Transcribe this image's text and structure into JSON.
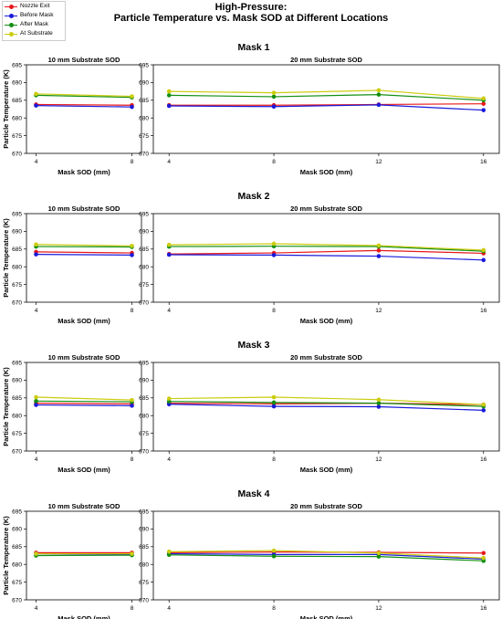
{
  "suptitle": {
    "line1": "High-Pressure:",
    "line2": "Particle Temperature vs. Mask SOD at Different Locations"
  },
  "legend": [
    {
      "name": "Nozzle Exit",
      "color": "#e8191b"
    },
    {
      "name": "Before Mask",
      "color": "#1a1adb"
    },
    {
      "name": "After Mask",
      "color": "#138f13"
    },
    {
      "name": "At Substrate",
      "color": "#cccc10"
    }
  ],
  "chart_data": [
    {
      "type": "line",
      "group": "Mask 1",
      "title": "10 mm Substrate SOD",
      "xlabel": "Mask SOD (mm)",
      "ylabel": "Particle Temperature (K)",
      "x": [
        4,
        8
      ],
      "xlim": [
        3.6,
        8.4
      ],
      "ylim": [
        670,
        695
      ],
      "xticks": [
        4,
        8
      ],
      "yticks": [
        670,
        675,
        680,
        685,
        690,
        695
      ],
      "grid": false,
      "series": [
        {
          "name": "Nozzle Exit",
          "values": [
            683.8,
            683.6
          ]
        },
        {
          "name": "Before Mask",
          "values": [
            683.5,
            683.1
          ]
        },
        {
          "name": "After Mask",
          "values": [
            686.4,
            685.8
          ]
        },
        {
          "name": "At Substrate",
          "values": [
            686.8,
            686.1
          ]
        }
      ]
    },
    {
      "type": "line",
      "group": "Mask 1",
      "title": "20 mm Substrate SOD",
      "xlabel": "Mask SOD (mm)",
      "ylabel": "",
      "x": [
        4,
        8,
        12,
        16
      ],
      "xlim": [
        3.4,
        16.6
      ],
      "ylim": [
        670,
        695
      ],
      "xticks": [
        4,
        8,
        12,
        16
      ],
      "yticks": [
        670,
        675,
        680,
        685,
        690,
        695
      ],
      "grid": false,
      "series": [
        {
          "name": "Nozzle Exit",
          "values": [
            683.6,
            683.6,
            683.8,
            684.0
          ]
        },
        {
          "name": "Before Mask",
          "values": [
            683.4,
            683.2,
            683.7,
            682.2
          ]
        },
        {
          "name": "After Mask",
          "values": [
            686.4,
            686.0,
            686.6,
            685.0
          ]
        },
        {
          "name": "At Substrate",
          "values": [
            687.5,
            687.1,
            687.8,
            685.5
          ]
        }
      ]
    },
    {
      "type": "line",
      "group": "Mask 2",
      "title": "10 mm Substrate SOD",
      "xlabel": "Mask SOD (mm)",
      "ylabel": "Particle Temperature (K)",
      "x": [
        4,
        8
      ],
      "xlim": [
        3.6,
        8.4
      ],
      "ylim": [
        670,
        695
      ],
      "xticks": [
        4,
        8
      ],
      "yticks": [
        670,
        675,
        680,
        685,
        690,
        695
      ],
      "grid": false,
      "series": [
        {
          "name": "Nozzle Exit",
          "values": [
            684.2,
            683.9
          ]
        },
        {
          "name": "Before Mask",
          "values": [
            683.5,
            683.3
          ]
        },
        {
          "name": "After Mask",
          "values": [
            685.7,
            685.6
          ]
        },
        {
          "name": "At Substrate",
          "values": [
            686.3,
            685.9
          ]
        }
      ]
    },
    {
      "type": "line",
      "group": "Mask 2",
      "title": "20 mm Substrate SOD",
      "xlabel": "Mask SOD (mm)",
      "ylabel": "",
      "x": [
        4,
        8,
        12,
        16
      ],
      "xlim": [
        3.4,
        16.6
      ],
      "ylim": [
        670,
        695
      ],
      "xticks": [
        4,
        8,
        12,
        16
      ],
      "yticks": [
        670,
        675,
        680,
        685,
        690,
        695
      ],
      "grid": false,
      "series": [
        {
          "name": "Nozzle Exit",
          "values": [
            683.6,
            683.9,
            684.6,
            683.8
          ]
        },
        {
          "name": "Before Mask",
          "values": [
            683.4,
            683.3,
            683.0,
            681.9
          ]
        },
        {
          "name": "After Mask",
          "values": [
            685.7,
            685.8,
            685.7,
            684.4
          ]
        },
        {
          "name": "At Substrate",
          "values": [
            686.2,
            686.5,
            686.0,
            684.7
          ]
        }
      ]
    },
    {
      "type": "line",
      "group": "Mask 3",
      "title": "10 mm Substrate SOD",
      "xlabel": "Mask SOD (mm)",
      "ylabel": "Particle Temperature (K)",
      "x": [
        4,
        8
      ],
      "xlim": [
        3.6,
        8.4
      ],
      "ylim": [
        670,
        695
      ],
      "xticks": [
        4,
        8
      ],
      "yticks": [
        670,
        675,
        680,
        685,
        690,
        695
      ],
      "grid": false,
      "series": [
        {
          "name": "Nozzle Exit",
          "values": [
            683.5,
            683.3
          ]
        },
        {
          "name": "Before Mask",
          "values": [
            683.0,
            682.8
          ]
        },
        {
          "name": "After Mask",
          "values": [
            684.1,
            683.9
          ]
        },
        {
          "name": "At Substrate",
          "values": [
            685.2,
            684.4
          ]
        }
      ]
    },
    {
      "type": "line",
      "group": "Mask 3",
      "title": "20 mm Substrate SOD",
      "xlabel": "Mask SOD (mm)",
      "ylabel": "",
      "x": [
        4,
        8,
        12,
        16
      ],
      "xlim": [
        3.4,
        16.6
      ],
      "ylim": [
        670,
        695
      ],
      "xticks": [
        4,
        8,
        12,
        16
      ],
      "yticks": [
        670,
        675,
        680,
        685,
        690,
        695
      ],
      "grid": false,
      "series": [
        {
          "name": "Nozzle Exit",
          "values": [
            683.5,
            683.3,
            683.5,
            683.1
          ]
        },
        {
          "name": "Before Mask",
          "values": [
            683.2,
            682.6,
            682.5,
            681.5
          ]
        },
        {
          "name": "After Mask",
          "values": [
            684.0,
            683.7,
            683.5,
            682.6
          ]
        },
        {
          "name": "At Substrate",
          "values": [
            684.8,
            685.2,
            684.5,
            683.1
          ]
        }
      ]
    },
    {
      "type": "line",
      "group": "Mask 4",
      "title": "10 mm Substrate SOD",
      "xlabel": "Mask SOD (mm)",
      "ylabel": "Particle Temperature (K)",
      "x": [
        4,
        8
      ],
      "xlim": [
        3.6,
        8.4
      ],
      "ylim": [
        670,
        695
      ],
      "xticks": [
        4,
        8
      ],
      "yticks": [
        670,
        675,
        680,
        685,
        690,
        695
      ],
      "grid": false,
      "series": [
        {
          "name": "Nozzle Exit",
          "values": [
            683.3,
            683.3
          ]
        },
        {
          "name": "Before Mask",
          "values": [
            683.0,
            682.8
          ]
        },
        {
          "name": "After Mask",
          "values": [
            682.5,
            682.6
          ]
        },
        {
          "name": "At Substrate",
          "values": [
            683.0,
            683.0
          ]
        }
      ]
    },
    {
      "type": "line",
      "group": "Mask 4",
      "title": "20 mm Substrate SOD",
      "xlabel": "Mask SOD (mm)",
      "ylabel": "",
      "x": [
        4,
        8,
        12,
        16
      ],
      "xlim": [
        3.4,
        16.6
      ],
      "ylim": [
        670,
        695
      ],
      "xticks": [
        4,
        8,
        12,
        16
      ],
      "yticks": [
        670,
        675,
        680,
        685,
        690,
        695
      ],
      "grid": false,
      "series": [
        {
          "name": "Nozzle Exit",
          "values": [
            683.3,
            683.5,
            683.4,
            683.2
          ]
        },
        {
          "name": "Before Mask",
          "values": [
            683.0,
            682.8,
            682.8,
            681.5
          ]
        },
        {
          "name": "After Mask",
          "values": [
            682.7,
            682.3,
            682.2,
            681.0
          ]
        },
        {
          "name": "At Substrate",
          "values": [
            683.6,
            683.9,
            683.2,
            681.8
          ]
        }
      ]
    }
  ]
}
